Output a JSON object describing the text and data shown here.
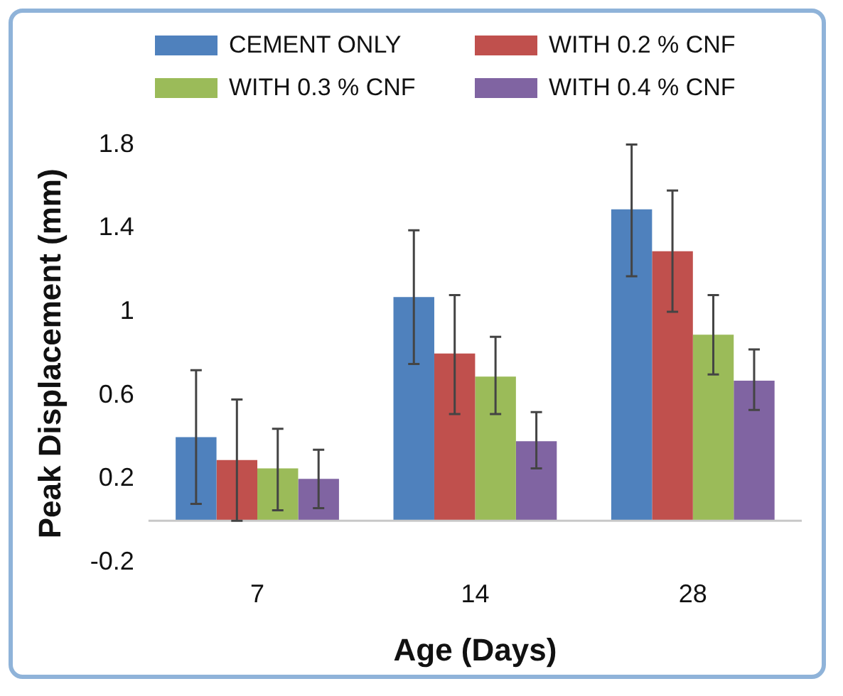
{
  "chart_data": {
    "type": "bar",
    "xlabel": "Age (Days)",
    "ylabel": "Peak Displacement (mm)",
    "categories": [
      "7",
      "14",
      "28"
    ],
    "series": [
      {
        "name": "CEMENT ONLY",
        "color": "#4f81bd",
        "values": [
          0.4,
          1.07,
          1.49
        ],
        "errors": [
          [
            0.08,
            0.72
          ],
          [
            0.75,
            1.39
          ],
          [
            1.17,
            1.8
          ]
        ]
      },
      {
        "name": "WITH 0.2 % CNF",
        "color": "#c0504d",
        "values": [
          0.29,
          0.8,
          1.29
        ],
        "errors": [
          [
            0.0,
            0.58
          ],
          [
            0.51,
            1.08
          ],
          [
            1.0,
            1.58
          ]
        ]
      },
      {
        "name": "WITH 0.3 % CNF",
        "color": "#9bbb59",
        "values": [
          0.25,
          0.69,
          0.89
        ],
        "errors": [
          [
            0.05,
            0.44
          ],
          [
            0.51,
            0.88
          ],
          [
            0.7,
            1.08
          ]
        ]
      },
      {
        "name": "WITH 0.4 % CNF",
        "color": "#8064a2",
        "values": [
          0.2,
          0.38,
          0.67
        ],
        "errors": [
          [
            0.06,
            0.34
          ],
          [
            0.25,
            0.52
          ],
          [
            0.53,
            0.82
          ]
        ]
      }
    ],
    "ylim": [
      -0.2,
      1.8
    ],
    "yticks": [
      -0.2,
      0.2,
      0.6,
      1,
      1.4,
      1.8
    ],
    "grid": false,
    "legend": "top"
  }
}
